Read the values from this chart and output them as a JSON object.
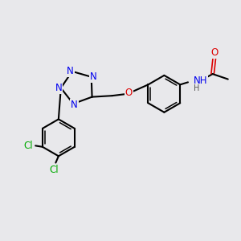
{
  "bg_color": "#e8e8eb",
  "bond_color": "#000000",
  "bond_width": 1.5,
  "atom_colors": {
    "N": "#0000ee",
    "O": "#dd0000",
    "Cl": "#00aa00",
    "C": "#000000",
    "H": "#555555"
  },
  "font_size": 8.5,
  "title": ""
}
